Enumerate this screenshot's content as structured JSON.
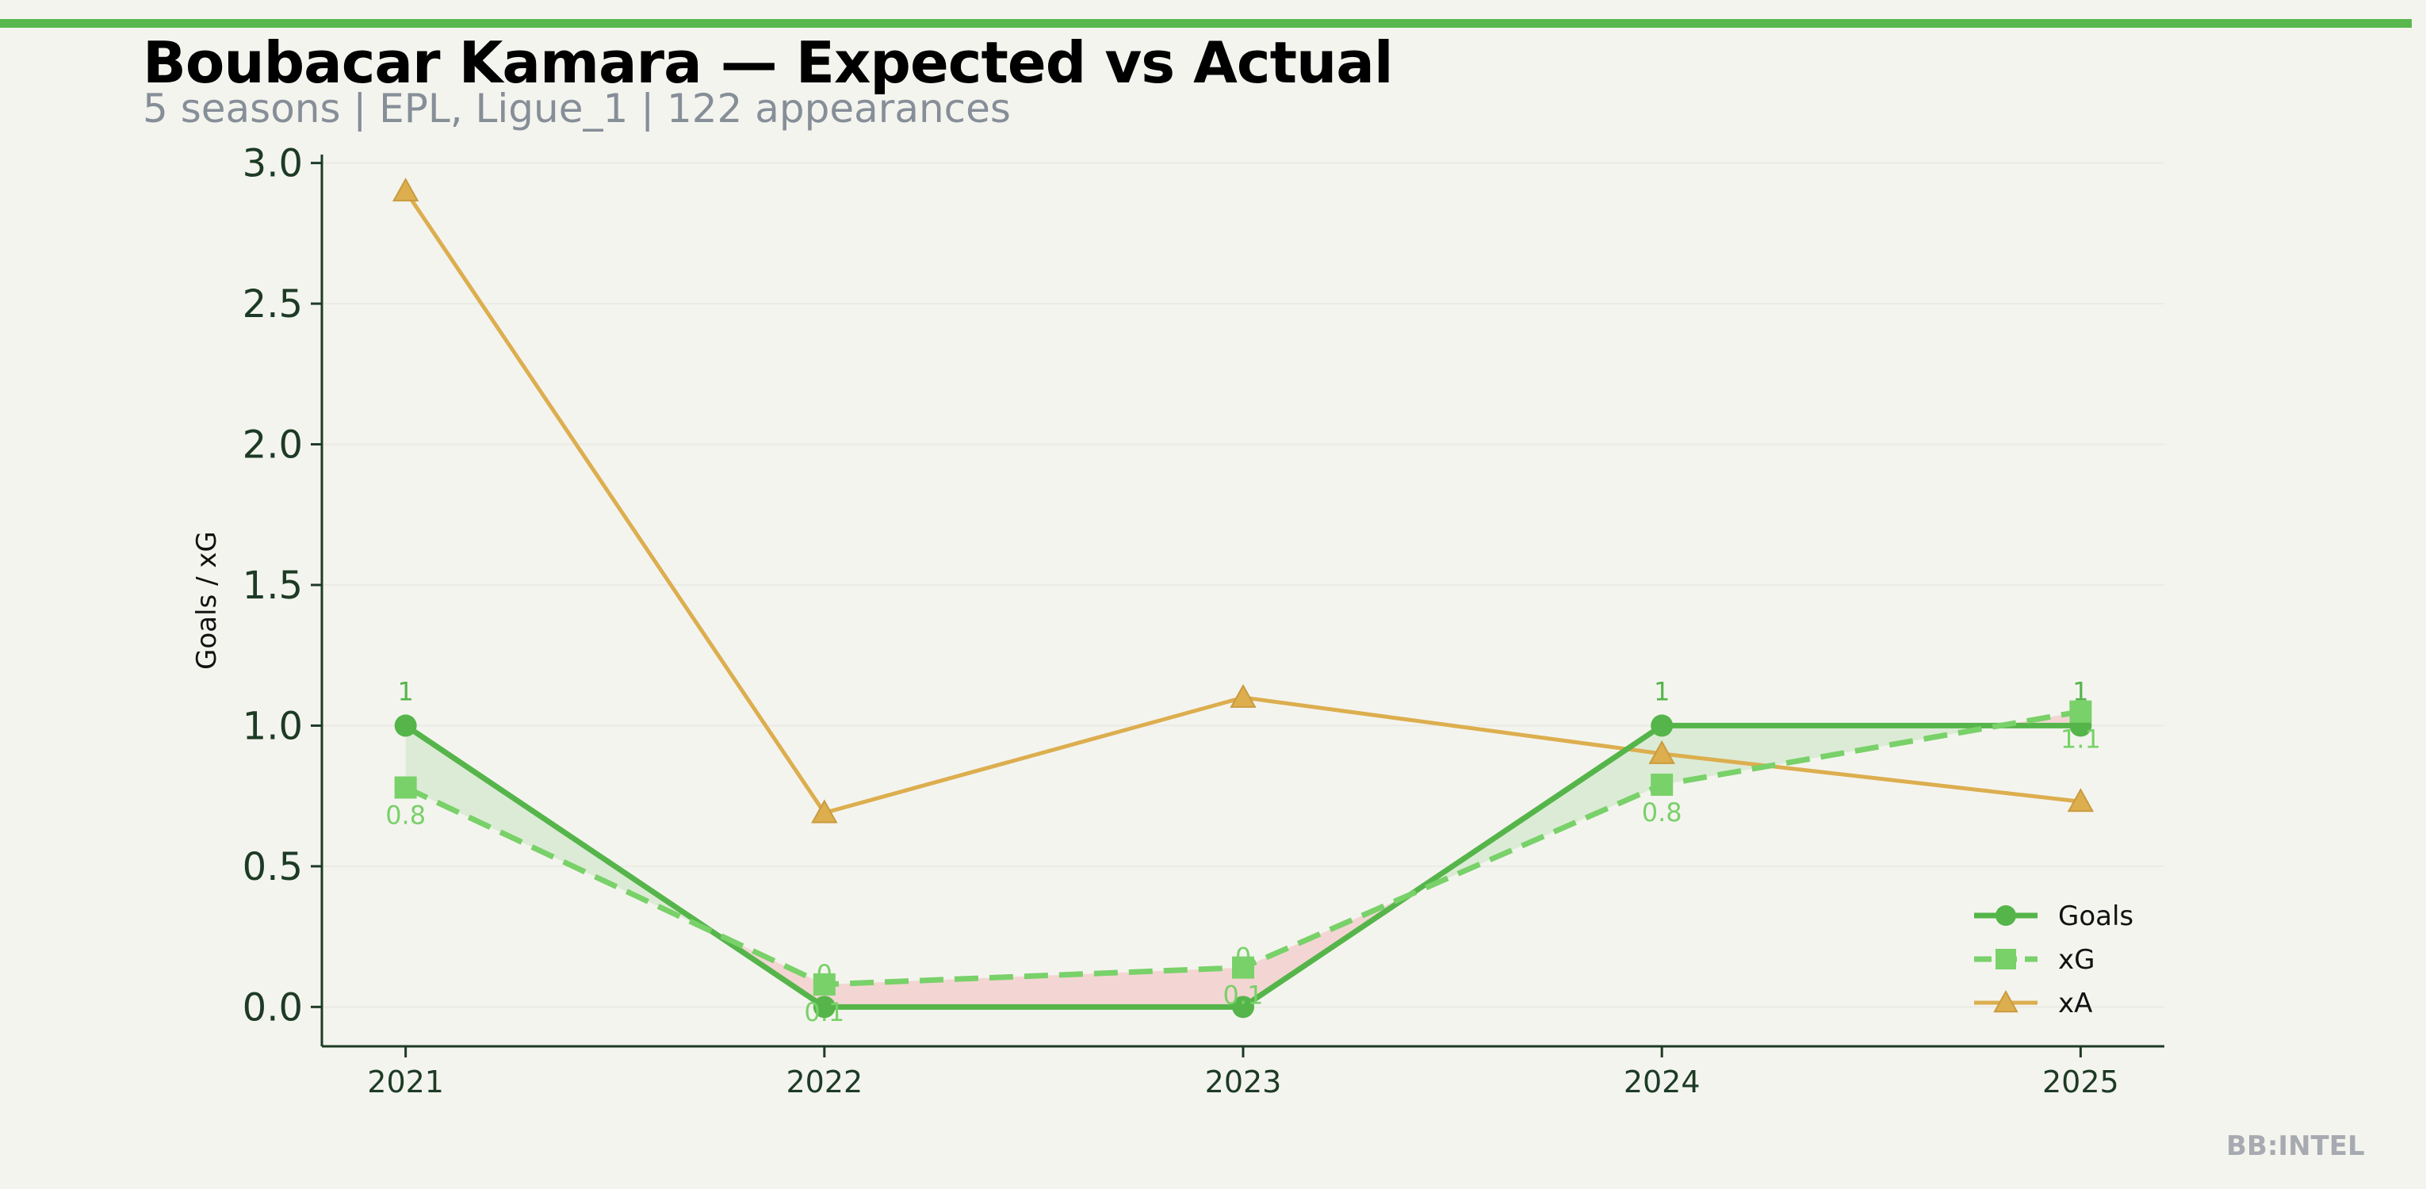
{
  "header": {
    "title": "Boubacar Kamara — Expected vs Actual",
    "subtitle": "5 seasons | EPL, Ligue_1 | 122 appearances"
  },
  "brand": "BB:INTEL",
  "colors": {
    "background": "#f4f4ef",
    "accent": "#58b84d",
    "goals": "#55b54a",
    "xg": "#79d169",
    "xa": "#dcae4e",
    "overperform_fill": "#dcebd6",
    "underperform_fill": "#f3d6d3",
    "axis": "#1d3b24",
    "muted": "#868e98"
  },
  "chart_data": {
    "type": "line",
    "x": [
      "2021",
      "2022",
      "2023",
      "2024",
      "2025"
    ],
    "ylabel": "Goals / xG",
    "xlabel": "",
    "ylim": [
      -0.14,
      3.03
    ],
    "yticks": [
      "0.0",
      "0.5",
      "1.0",
      "1.5",
      "2.0",
      "2.5",
      "3.0"
    ],
    "grid": true,
    "legend_position": "lower-right",
    "series": [
      {
        "name": "Goals",
        "marker": "circle",
        "style": "solid",
        "values": [
          1,
          0,
          0,
          1,
          1
        ],
        "labels": [
          "1",
          "",
          "",
          "1",
          "1"
        ]
      },
      {
        "name": "xG",
        "marker": "square",
        "style": "dashed",
        "values": [
          0.78,
          0.08,
          0.14,
          0.79,
          1.05
        ],
        "labels": [
          "0.8",
          "0.1",
          "0.1",
          "0.8",
          "1.1"
        ]
      },
      {
        "name": "xA",
        "marker": "triangle",
        "style": "solid",
        "values": [
          2.9,
          0.69,
          1.1,
          0.9,
          0.73
        ]
      }
    ],
    "overlap_labels": [
      "0",
      "0"
    ]
  }
}
